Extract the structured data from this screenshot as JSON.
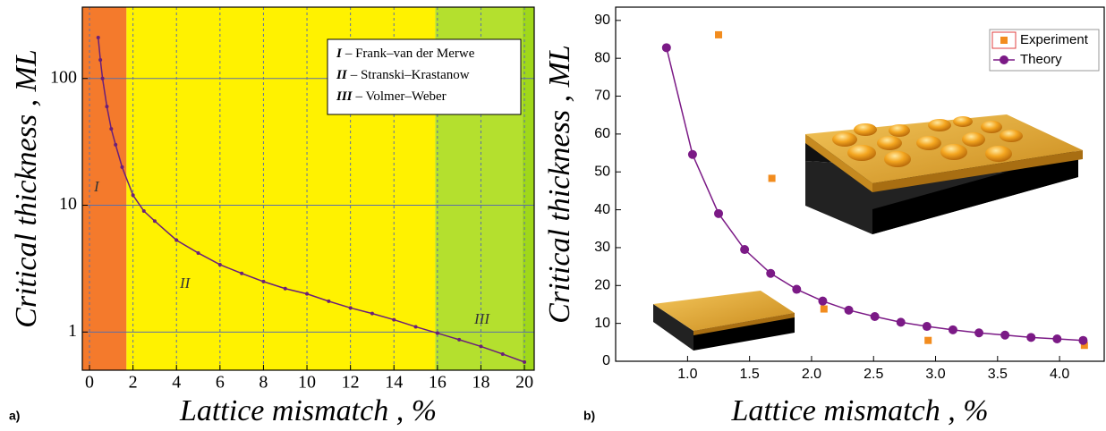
{
  "chart_data": [
    {
      "type": "line",
      "panel_label": "a)",
      "x_label": "Lattice mismatch , %",
      "y_label": "Critical thickness , ML",
      "xlim": [
        -0.33,
        20.45
      ],
      "ylim": [
        0.5,
        365
      ],
      "ylog": true,
      "xticks": [
        0,
        2,
        4,
        6,
        8,
        10,
        12,
        14,
        16,
        18,
        20
      ],
      "yticks": [
        1,
        10,
        100
      ],
      "grid": true,
      "regions": [
        {
          "from": -0.33,
          "to": 1.7,
          "color": "#f47a2c",
          "label": "I"
        },
        {
          "from": 1.7,
          "to": 15.9,
          "color": "#fff200",
          "label": "II"
        },
        {
          "from": 15.9,
          "to": 19.9,
          "color": "#b4e02e",
          "label": "III"
        },
        {
          "from": 19.9,
          "to": 20.45,
          "color": "#a0d81a"
        }
      ],
      "legend": [
        {
          "numeral": "I",
          "text": "– Frank–van der Merwe"
        },
        {
          "numeral": "II",
          "text": "– Stranski–Krastanow"
        },
        {
          "numeral": "III",
          "text": "– Volmer–Weber"
        }
      ],
      "series": [
        {
          "color": "#6a1f7a",
          "mode": "lines+markers",
          "x": [
            0.4,
            0.5,
            0.6,
            0.8,
            1.0,
            1.2,
            1.5,
            2,
            2.5,
            3,
            4,
            5,
            6,
            7,
            8,
            9,
            10,
            11,
            12,
            13,
            14,
            15,
            16,
            17,
            18,
            19,
            20
          ],
          "values": [
            210,
            140,
            100,
            60,
            40,
            30,
            20,
            12,
            9,
            7.5,
            5.3,
            4.2,
            3.4,
            2.9,
            2.5,
            2.2,
            2.0,
            1.75,
            1.55,
            1.4,
            1.25,
            1.1,
            0.98,
            0.87,
            0.77,
            0.67,
            0.58
          ]
        }
      ]
    },
    {
      "type": "line",
      "panel_label": "b)",
      "x_label": "Lattice mismatch , %",
      "y_label": "Critical thickness , ML",
      "xlim": [
        0.42,
        4.36
      ],
      "ylim": [
        0,
        93.5
      ],
      "ylog": false,
      "xticks": [
        {
          "value": 1,
          "label": "1.0"
        },
        1.5,
        {
          "value": 2,
          "label": "2.0"
        },
        2.5,
        {
          "value": 3,
          "label": "3.0"
        },
        3.5,
        {
          "value": 4,
          "label": "4.0"
        }
      ],
      "yticks": [
        0,
        10,
        20,
        30,
        40,
        50,
        60,
        70,
        80,
        90
      ],
      "grid": false,
      "series": [
        {
          "name": "Experiment",
          "color": "#f28c1e",
          "mode": "markers",
          "marker": "square",
          "x": [
            1.25,
            1.68,
            2.1,
            2.94,
            4.2
          ],
          "values": [
            86.2,
            48.3,
            13.8,
            5.5,
            4.2
          ]
        },
        {
          "name": "Theory",
          "color": "#7b1a86",
          "mode": "lines+markers",
          "marker": "circle",
          "x": [
            0.83,
            1.04,
            1.25,
            1.46,
            1.67,
            1.88,
            2.09,
            2.3,
            2.51,
            2.72,
            2.93,
            3.14,
            3.35,
            3.56,
            3.77,
            3.98,
            4.19
          ],
          "values": [
            82.8,
            54.6,
            39,
            29.5,
            23.2,
            19.0,
            15.9,
            13.5,
            11.8,
            10.3,
            9.2,
            8.3,
            7.5,
            6.9,
            6.3,
            5.9,
            5.5
          ]
        }
      ]
    }
  ]
}
